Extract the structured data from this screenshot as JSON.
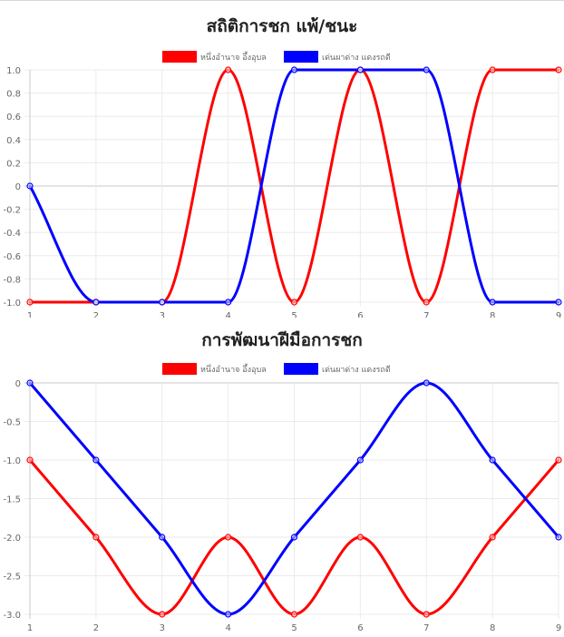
{
  "chart_data": [
    {
      "type": "line",
      "title": "สถิติการชก แพ้/ชนะ",
      "categories": [
        "1",
        "2",
        "3",
        "4",
        "5",
        "6",
        "7",
        "8",
        "9"
      ],
      "series": [
        {
          "name": "หนึ่งอำนาจ อึ้งอุบล",
          "color": "#ff0000",
          "values": [
            -1,
            -1,
            -1,
            1,
            -1,
            1,
            -1,
            1,
            1
          ]
        },
        {
          "name": "เด่นผาด่าง แดงรถดี",
          "color": "#0000ff",
          "values": [
            0,
            -1,
            -1,
            -1,
            1,
            1,
            1,
            -1,
            -1
          ]
        }
      ],
      "ylim": [
        -1,
        1
      ],
      "yticks": [
        "1.0",
        "0.8",
        "0.6",
        "0.4",
        "0.2",
        "0",
        "-0.2",
        "-0.4",
        "-0.6",
        "-0.8",
        "-1.0"
      ],
      "grid": true,
      "legend": "top-center"
    },
    {
      "type": "line",
      "title": "การพัฒนาฝีมือการชก",
      "categories": [
        "1",
        "2",
        "3",
        "4",
        "5",
        "6",
        "7",
        "8",
        "9"
      ],
      "series": [
        {
          "name": "หนึ่งอำนาจ อึ้งอุบล",
          "color": "#ff0000",
          "values": [
            -1,
            -2,
            -3,
            -2,
            -3,
            -2,
            -3,
            -2,
            -1
          ]
        },
        {
          "name": "เด่นผาด่าง แดงรถดี",
          "color": "#0000ff",
          "values": [
            0,
            -1,
            -2,
            -3,
            -2,
            -1,
            0,
            -1,
            -2
          ]
        }
      ],
      "ylim": [
        -3,
        0
      ],
      "yticks": [
        "0",
        "-0.5",
        "-1.0",
        "-1.5",
        "-2.0",
        "-2.5",
        "-3.0"
      ],
      "grid": true,
      "legend": "top-center"
    }
  ]
}
